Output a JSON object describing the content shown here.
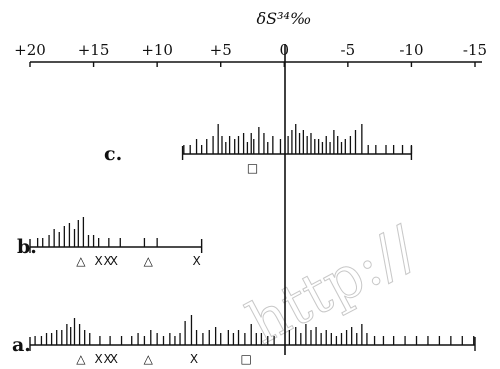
{
  "chart_data": {
    "type": "strip",
    "title": "",
    "xlabel": "δS³⁴‰",
    "xlim": [
      20,
      -15
    ],
    "x_reversed": true,
    "tick_values": [
      20,
      15,
      10,
      5,
      0,
      -5,
      -10,
      -15
    ],
    "tick_labels": [
      "+20",
      "+15",
      "+10",
      "+5",
      "0",
      "-5",
      "-10",
      "-15"
    ],
    "rows": [
      {
        "label": "c.",
        "range": [
          8,
          -10
        ],
        "lines": [
          [
            7.9,
            0.3
          ],
          [
            7.4,
            0.3
          ],
          [
            6.9,
            0.5
          ],
          [
            6.5,
            0.3
          ],
          [
            6.1,
            0.5
          ],
          [
            5.6,
            0.6
          ],
          [
            5.2,
            1.0
          ],
          [
            4.9,
            0.6
          ],
          [
            4.6,
            0.4
          ],
          [
            4.3,
            0.6
          ],
          [
            3.9,
            0.5
          ],
          [
            3.6,
            0.6
          ],
          [
            3.2,
            0.7
          ],
          [
            2.9,
            0.4
          ],
          [
            2.6,
            0.7
          ],
          [
            2.4,
            0.5
          ],
          [
            2.0,
            0.9
          ],
          [
            1.6,
            0.7
          ],
          [
            1.3,
            0.4
          ],
          [
            0.9,
            0.6
          ],
          [
            0.3,
            0.5
          ],
          [
            -0.3,
            0.6
          ],
          [
            -0.6,
            0.8
          ],
          [
            -0.9,
            1.0
          ],
          [
            -1.2,
            0.7
          ],
          [
            -1.5,
            0.8
          ],
          [
            -1.8,
            0.6
          ],
          [
            -2.1,
            0.7
          ],
          [
            -2.4,
            0.5
          ],
          [
            -2.7,
            0.5
          ],
          [
            -3.0,
            0.4
          ],
          [
            -3.3,
            0.6
          ],
          [
            -3.6,
            0.4
          ],
          [
            -3.9,
            0.8
          ],
          [
            -4.2,
            0.6
          ],
          [
            -4.5,
            0.4
          ],
          [
            -4.8,
            0.5
          ],
          [
            -5.2,
            0.6
          ],
          [
            -5.6,
            0.8
          ],
          [
            -6.1,
            1.0
          ],
          [
            -6.6,
            0.3
          ],
          [
            -7.2,
            0.3
          ],
          [
            -8.0,
            0.3
          ],
          [
            -8.6,
            0.3
          ],
          [
            -9.3,
            0.3
          ],
          [
            -10.0,
            0.3
          ]
        ],
        "markers": [
          {
            "symbol": "□",
            "value": 2.5
          }
        ]
      },
      {
        "label": "b.",
        "range": [
          20,
          6.5
        ],
        "lines": [
          [
            19.4,
            0.3
          ],
          [
            19.0,
            0.3
          ],
          [
            18.5,
            0.4
          ],
          [
            18.1,
            0.6
          ],
          [
            17.7,
            0.5
          ],
          [
            17.3,
            0.7
          ],
          [
            16.9,
            0.8
          ],
          [
            16.5,
            0.6
          ],
          [
            16.2,
            0.9
          ],
          [
            15.8,
            1.0
          ],
          [
            15.4,
            0.4
          ],
          [
            15.0,
            0.4
          ],
          [
            14.6,
            0.3
          ],
          [
            13.8,
            0.3
          ],
          [
            12.9,
            0.3
          ],
          [
            11.0,
            0.3
          ],
          [
            10.0,
            0.3
          ]
        ],
        "markers": [
          {
            "symbol": "△",
            "value": 16.0
          },
          {
            "symbol": "X",
            "value": 14.6
          },
          {
            "symbol": "X",
            "value": 13.9
          },
          {
            "symbol": "X",
            "value": 13.4
          },
          {
            "symbol": "△",
            "value": 10.7
          },
          {
            "symbol": "X",
            "value": 6.9
          }
        ]
      },
      {
        "label": "a.",
        "range": [
          20,
          -15
        ],
        "lines": [
          [
            19.6,
            0.3
          ],
          [
            19.1,
            0.3
          ],
          [
            18.7,
            0.4
          ],
          [
            18.3,
            0.4
          ],
          [
            17.9,
            0.5
          ],
          [
            17.5,
            0.5
          ],
          [
            17.1,
            0.7
          ],
          [
            16.8,
            0.6
          ],
          [
            16.5,
            0.9
          ],
          [
            16.1,
            0.7
          ],
          [
            15.7,
            0.5
          ],
          [
            15.3,
            0.4
          ],
          [
            14.5,
            0.3
          ],
          [
            13.7,
            0.3
          ],
          [
            12.8,
            0.3
          ],
          [
            12.0,
            0.3
          ],
          [
            11.5,
            0.4
          ],
          [
            11.0,
            0.3
          ],
          [
            10.5,
            0.5
          ],
          [
            10.0,
            0.4
          ],
          [
            9.5,
            0.3
          ],
          [
            9.0,
            0.4
          ],
          [
            8.6,
            0.3
          ],
          [
            8.2,
            0.4
          ],
          [
            7.8,
            0.8
          ],
          [
            7.3,
            1.0
          ],
          [
            6.9,
            0.5
          ],
          [
            6.4,
            0.4
          ],
          [
            5.9,
            0.5
          ],
          [
            5.4,
            0.6
          ],
          [
            5.0,
            0.4
          ],
          [
            4.4,
            0.5
          ],
          [
            4.0,
            0.4
          ],
          [
            3.6,
            0.5
          ],
          [
            3.1,
            0.4
          ],
          [
            2.6,
            0.7
          ],
          [
            2.2,
            0.4
          ],
          [
            1.8,
            0.4
          ],
          [
            1.3,
            0.3
          ],
          [
            0.8,
            0.3
          ],
          [
            -0.4,
            0.5
          ],
          [
            -0.9,
            0.6
          ],
          [
            -1.3,
            0.4
          ],
          [
            -1.7,
            0.7
          ],
          [
            -2.1,
            0.5
          ],
          [
            -2.5,
            0.6
          ],
          [
            -2.9,
            0.4
          ],
          [
            -3.3,
            0.5
          ],
          [
            -3.7,
            0.4
          ],
          [
            -4.1,
            0.3
          ],
          [
            -4.5,
            0.4
          ],
          [
            -4.9,
            0.5
          ],
          [
            -5.3,
            0.6
          ],
          [
            -5.7,
            0.4
          ],
          [
            -6.1,
            0.7
          ],
          [
            -6.5,
            0.4
          ],
          [
            -7.1,
            0.3
          ],
          [
            -7.8,
            0.3
          ],
          [
            -8.6,
            0.3
          ],
          [
            -9.5,
            0.3
          ],
          [
            -10.4,
            0.3
          ],
          [
            -11.3,
            0.3
          ],
          [
            -12.2,
            0.3
          ],
          [
            -13.1,
            0.3
          ],
          [
            -14.0,
            0.3
          ],
          [
            -14.9,
            0.3
          ]
        ],
        "markers": [
          {
            "symbol": "△",
            "value": 16.0
          },
          {
            "symbol": "X",
            "value": 14.6
          },
          {
            "symbol": "X",
            "value": 13.9
          },
          {
            "symbol": "X",
            "value": 13.4
          },
          {
            "symbol": "△",
            "value": 10.7
          },
          {
            "symbol": "X",
            "value": 7.1
          },
          {
            "symbol": "□",
            "value": 3.0
          }
        ]
      }
    ],
    "legend": "none",
    "grid": false
  },
  "watermark": "http://"
}
